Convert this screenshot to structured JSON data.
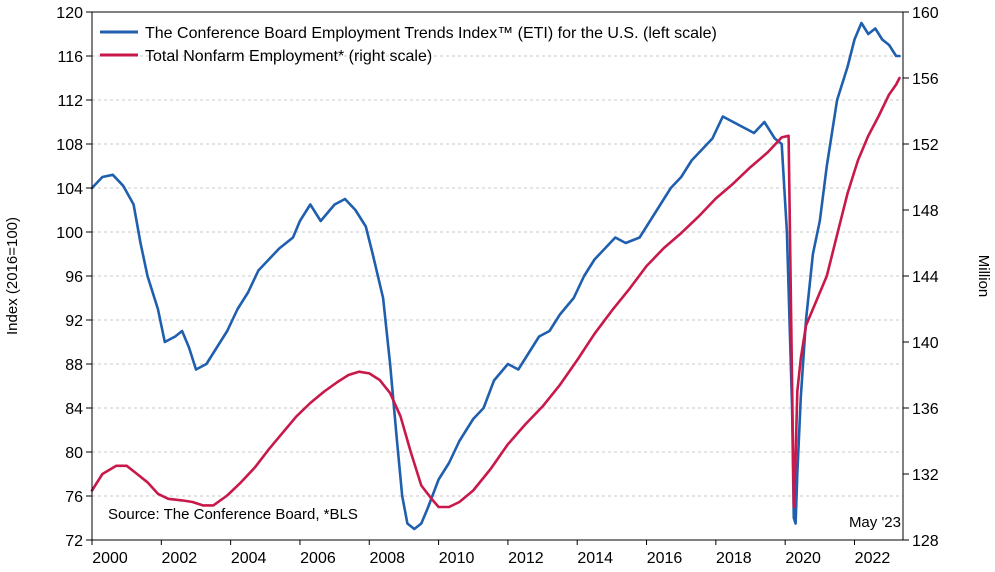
{
  "chart_data": {
    "type": "line",
    "ylabel": "Index (2016=100)",
    "y2label": "Million",
    "ylim": [
      72,
      120
    ],
    "y2lim": [
      128,
      160
    ],
    "xlim": [
      2000.0,
      2023.4
    ],
    "yticks": [
      72,
      76,
      80,
      84,
      88,
      92,
      96,
      100,
      104,
      108,
      112,
      116,
      120
    ],
    "y2ticks": [
      128,
      132,
      136,
      140,
      144,
      148,
      152,
      156,
      160
    ],
    "xticks": [
      2000,
      2002,
      2004,
      2006,
      2008,
      2010,
      2012,
      2014,
      2016,
      2018,
      2020,
      2022
    ],
    "xtick_labels": [
      "2000",
      "2002",
      "2004",
      "2006",
      "2008",
      "2010",
      "2012",
      "2014",
      "2016",
      "2018",
      "2020",
      "2022"
    ],
    "grid": true,
    "legend_position": "top-left",
    "source_note": "Source: The Conference Board, *BLS",
    "date_note": "May '23",
    "series": [
      {
        "name": "The Conference Board Employment Trends Index™ (ETI) for the U.S. (left scale)",
        "axis": "left",
        "color": "#1f5fae",
        "x": [
          2000.0,
          2000.3,
          2000.6,
          2000.9,
          2001.2,
          2001.4,
          2001.6,
          2001.9,
          2002.1,
          2002.4,
          2002.6,
          2002.8,
          2003.0,
          2003.3,
          2003.6,
          2003.9,
          2004.2,
          2004.5,
          2004.8,
          2005.1,
          2005.4,
          2005.8,
          2006.0,
          2006.3,
          2006.6,
          2007.0,
          2007.3,
          2007.6,
          2007.9,
          2008.1,
          2008.4,
          2008.6,
          2008.8,
          2008.95,
          2009.1,
          2009.3,
          2009.5,
          2009.7,
          2010.0,
          2010.3,
          2010.6,
          2011.0,
          2011.3,
          2011.6,
          2012.0,
          2012.3,
          2012.6,
          2012.9,
          2013.2,
          2013.5,
          2013.9,
          2014.2,
          2014.5,
          2014.8,
          2015.1,
          2015.4,
          2015.8,
          2016.1,
          2016.4,
          2016.7,
          2017.0,
          2017.3,
          2017.6,
          2017.9,
          2018.2,
          2018.5,
          2018.8,
          2019.1,
          2019.4,
          2019.7,
          2019.9,
          2020.05,
          2020.2,
          2020.25,
          2020.3,
          2020.35,
          2020.45,
          2020.6,
          2020.8,
          2021.0,
          2021.2,
          2021.5,
          2021.8,
          2022.0,
          2022.2,
          2022.4,
          2022.6,
          2022.8,
          2023.0,
          2023.1,
          2023.2,
          2023.3
        ],
        "values": [
          104.0,
          105.0,
          105.2,
          104.2,
          102.5,
          99.0,
          96.0,
          93.0,
          90.0,
          90.5,
          91.0,
          89.5,
          87.5,
          88.0,
          89.5,
          91.0,
          93.0,
          94.5,
          96.5,
          97.5,
          98.5,
          99.5,
          101.0,
          102.5,
          101.0,
          102.5,
          103.0,
          102.0,
          100.5,
          98.0,
          94.0,
          88.0,
          81.0,
          76.0,
          73.5,
          73.0,
          73.5,
          75.0,
          77.5,
          79.0,
          81.0,
          83.0,
          84.0,
          86.5,
          88.0,
          87.5,
          89.0,
          90.5,
          91.0,
          92.5,
          94.0,
          96.0,
          97.5,
          98.5,
          99.5,
          99.0,
          99.5,
          101.0,
          102.5,
          104.0,
          105.0,
          106.5,
          107.5,
          108.5,
          110.5,
          110.0,
          109.5,
          109.0,
          110.0,
          108.5,
          108.0,
          100.0,
          84.0,
          74.0,
          73.5,
          78.0,
          85.0,
          92.0,
          98.0,
          101.0,
          106.0,
          112.0,
          115.0,
          117.5,
          119.0,
          118.0,
          118.5,
          117.5,
          117.0,
          116.5,
          116.0,
          116.0
        ]
      },
      {
        "name": "Total Nonfarm Employment* (right scale)",
        "axis": "right",
        "color": "#c8194a",
        "x": [
          2000.0,
          2000.3,
          2000.7,
          2001.0,
          2001.3,
          2001.6,
          2001.9,
          2002.2,
          2002.6,
          2002.9,
          2003.2,
          2003.5,
          2003.9,
          2004.3,
          2004.7,
          2005.1,
          2005.5,
          2005.9,
          2006.3,
          2006.7,
          2007.1,
          2007.4,
          2007.7,
          2008.0,
          2008.3,
          2008.6,
          2008.9,
          2009.2,
          2009.5,
          2009.8,
          2010.0,
          2010.3,
          2010.6,
          2011.0,
          2011.5,
          2012.0,
          2012.5,
          2013.0,
          2013.5,
          2014.0,
          2014.5,
          2015.0,
          2015.5,
          2016.0,
          2016.5,
          2017.0,
          2017.5,
          2018.0,
          2018.5,
          2019.0,
          2019.5,
          2019.9,
          2020.1,
          2020.25,
          2020.3,
          2020.35,
          2020.45,
          2020.6,
          2020.9,
          2021.2,
          2021.5,
          2021.8,
          2022.1,
          2022.4,
          2022.7,
          2023.0,
          2023.2,
          2023.3
        ],
        "values": [
          131.0,
          132.0,
          132.5,
          132.5,
          132.0,
          131.5,
          130.8,
          130.5,
          130.4,
          130.3,
          130.1,
          130.1,
          130.7,
          131.5,
          132.4,
          133.5,
          134.5,
          135.5,
          136.3,
          137.0,
          137.6,
          138.0,
          138.2,
          138.1,
          137.7,
          136.9,
          135.5,
          133.3,
          131.3,
          130.5,
          130.0,
          130.0,
          130.3,
          131.0,
          132.3,
          133.8,
          135.0,
          136.1,
          137.4,
          138.9,
          140.5,
          141.9,
          143.2,
          144.6,
          145.7,
          146.6,
          147.6,
          148.7,
          149.6,
          150.6,
          151.5,
          152.4,
          152.5,
          130.0,
          133.0,
          137.0,
          139.0,
          141.0,
          142.5,
          144.0,
          146.5,
          149.0,
          151.0,
          152.5,
          153.7,
          155.0,
          155.6,
          156.0
        ]
      }
    ]
  }
}
